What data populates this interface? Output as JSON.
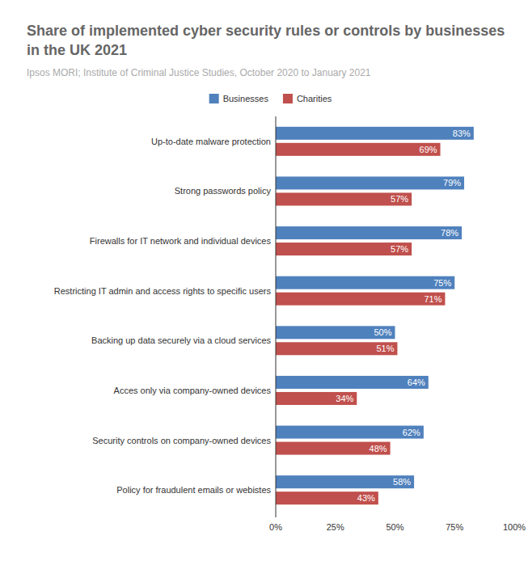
{
  "chart_data": {
    "type": "bar",
    "orientation": "horizontal",
    "title": "Share of implemented cyber security rules or controls by businesses in the UK 2021",
    "subtitle": "Ipsos MORI; Institute of Criminal Justice Studies, October 2020 to January 2021",
    "categories": [
      "Up-to-date malware protection",
      "Strong passwords policy",
      "Firewalls for IT network and individual devices",
      "Restricting IT admin and access rights to specific users",
      "Backing up data securely via a cloud services",
      "Acces only via company-owned devices",
      "Security controls on company-owned devices",
      "Policy for fraudulent emails or webistes"
    ],
    "series": [
      {
        "name": "Businesses",
        "color": "#4f81bd",
        "values": [
          83,
          79,
          78,
          75,
          50,
          64,
          62,
          58
        ],
        "value_labels": [
          "83%",
          "79%",
          "78%",
          "75%",
          "50%",
          "64%",
          "62%",
          "58%"
        ]
      },
      {
        "name": "Charities",
        "color": "#c0504d",
        "values": [
          69,
          57,
          57,
          71,
          51,
          34,
          48,
          43
        ],
        "value_labels": [
          "69%",
          "57%",
          "57%",
          "71%",
          "51%",
          "34%",
          "48%",
          "43%"
        ]
      }
    ],
    "xlim": [
      0,
      100
    ],
    "xticks": [
      {
        "value": 0,
        "label": "0%"
      },
      {
        "value": 25,
        "label": "25%"
      },
      {
        "value": 50,
        "label": "50%"
      },
      {
        "value": 75,
        "label": "75%"
      },
      {
        "value": 100,
        "label": "100%"
      }
    ],
    "grid": false,
    "legend": "top",
    "data_labels": true
  }
}
